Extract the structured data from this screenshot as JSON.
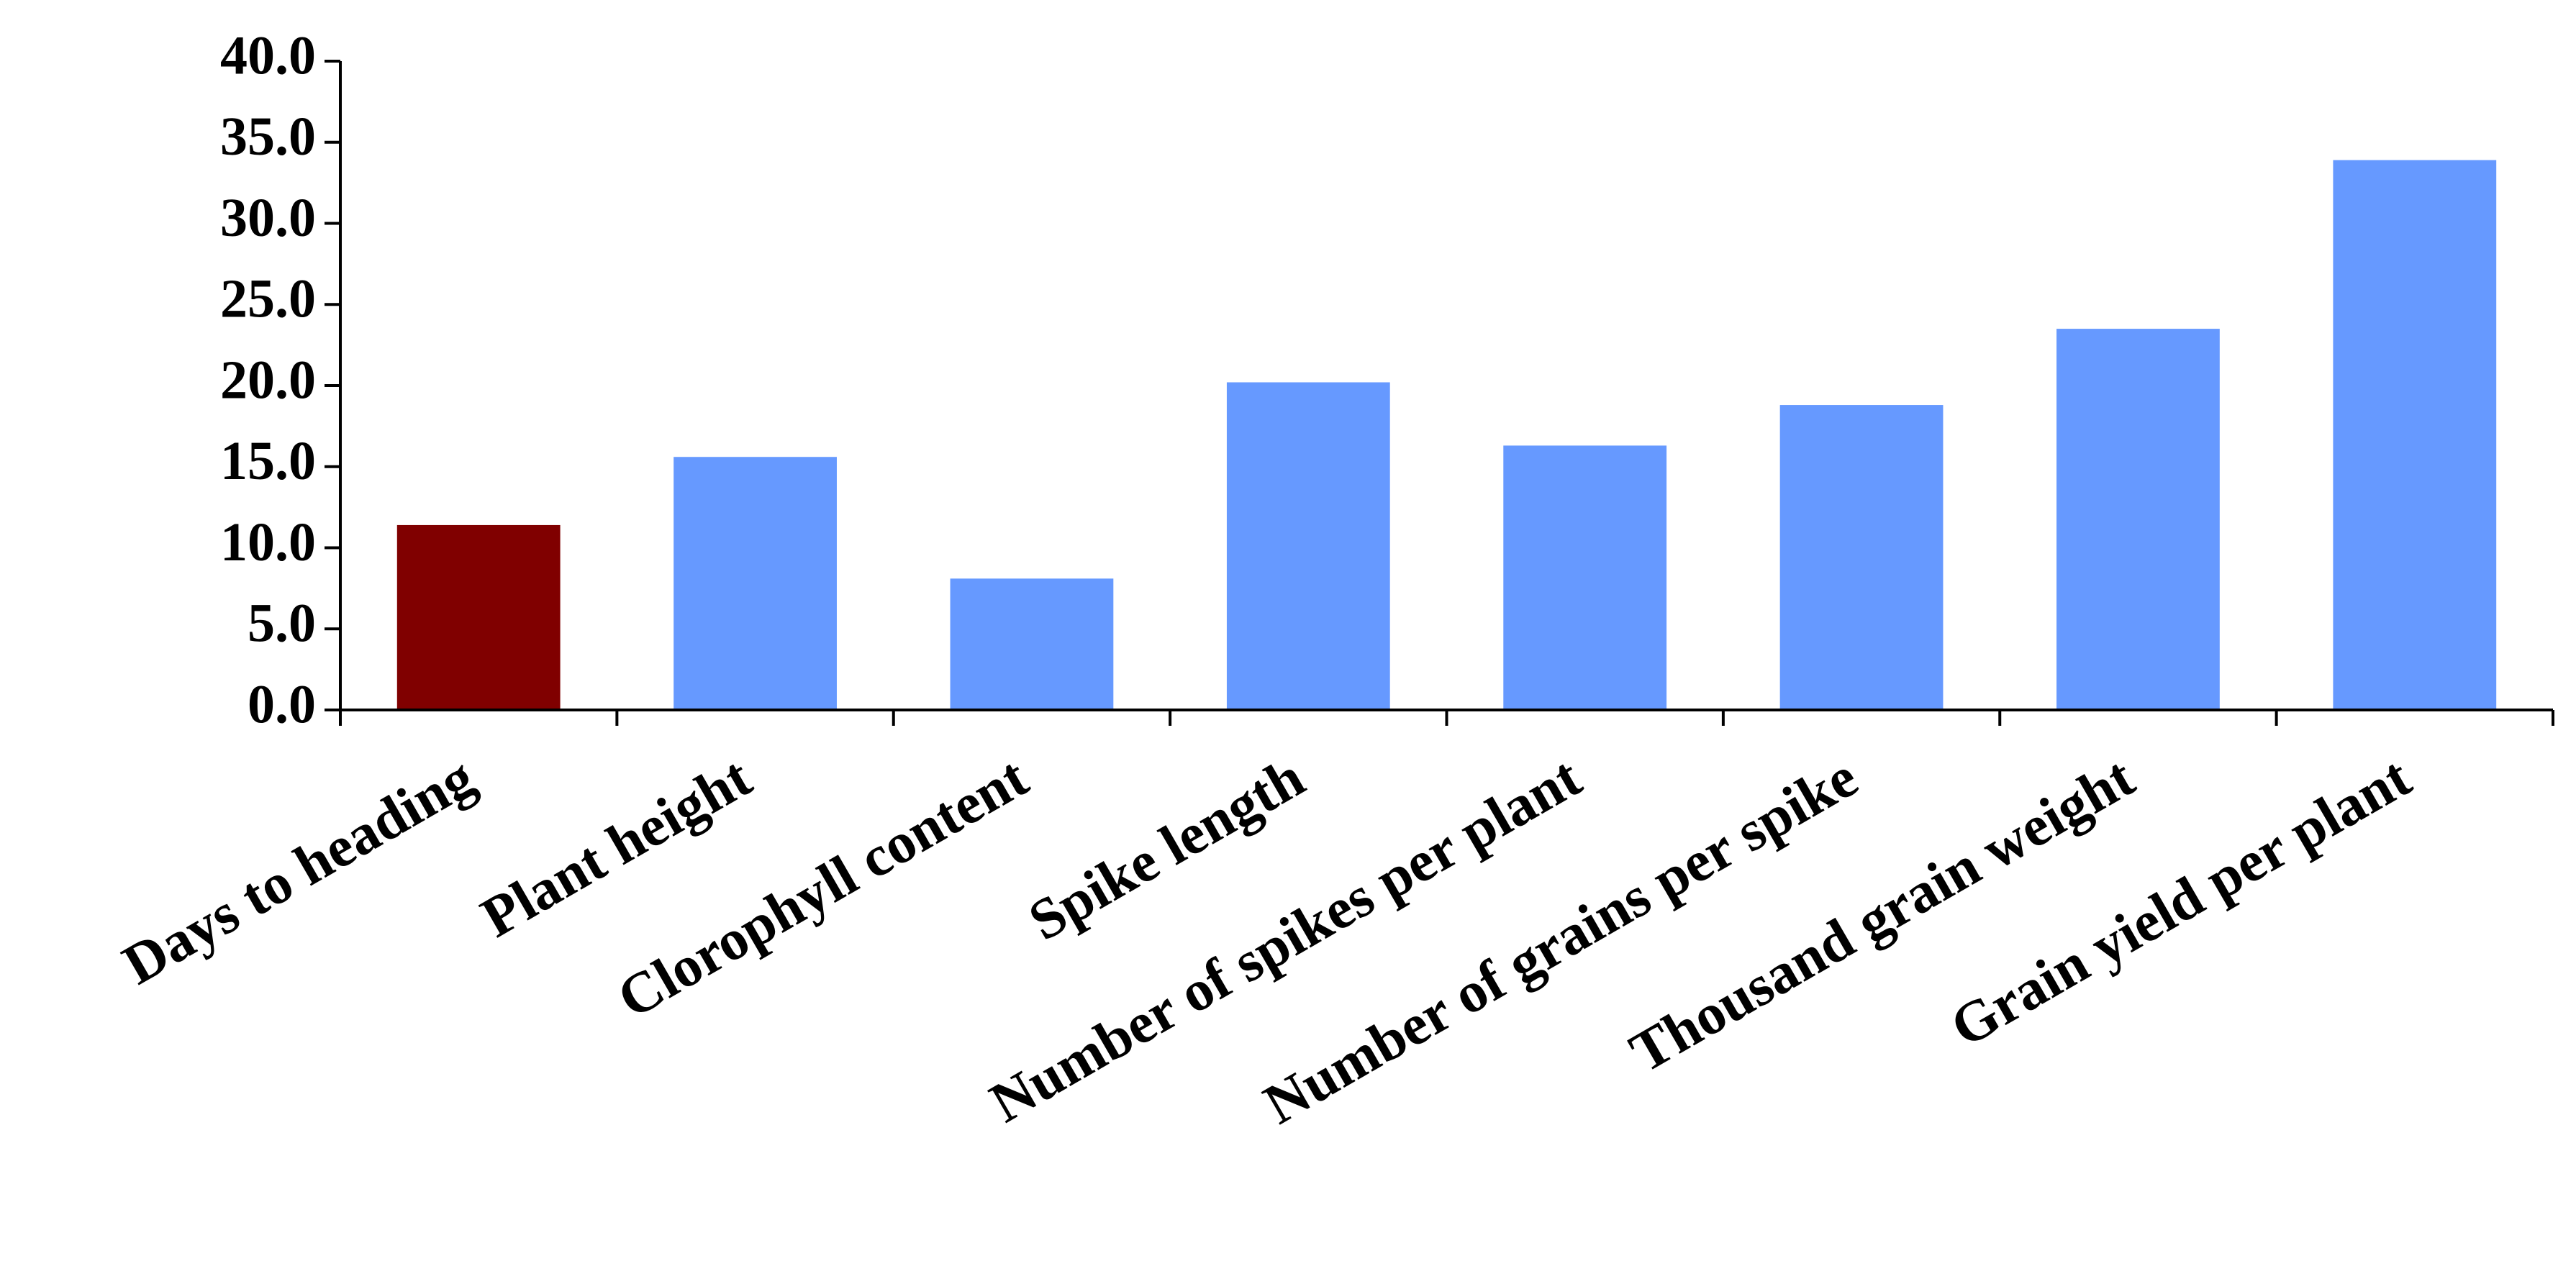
{
  "chart_data": {
    "type": "bar",
    "categories": [
      "Days to heading",
      "Plant height",
      "Clorophyll content",
      "Spike length",
      "Number of spikes per plant",
      "Number of grains per spike",
      "Thousand grain weight",
      "Grain yield per plant"
    ],
    "values": [
      11.4,
      15.6,
      8.1,
      20.2,
      16.3,
      18.8,
      23.5,
      33.9
    ],
    "colors": [
      "#800000",
      "#6699ff",
      "#6699ff",
      "#6699ff",
      "#6699ff",
      "#6699ff",
      "#6699ff",
      "#6699ff"
    ],
    "ylim": [
      0,
      40
    ],
    "yticks": [
      {
        "value": 0,
        "label": "0.0"
      },
      {
        "value": 5,
        "label": "5.0"
      },
      {
        "value": 10,
        "label": "10.0"
      },
      {
        "value": 15,
        "label": "15.0"
      },
      {
        "value": 20,
        "label": "20.0"
      },
      {
        "value": 25,
        "label": "25.0"
      },
      {
        "value": 30,
        "label": "30.0"
      },
      {
        "value": 35,
        "label": "35.0"
      },
      {
        "value": 40,
        "label": "40.0"
      }
    ],
    "grid": false
  }
}
